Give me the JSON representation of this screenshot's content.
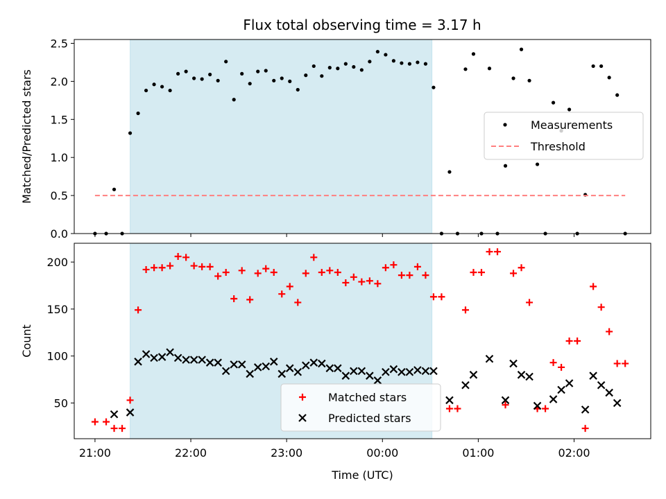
{
  "chart_data": [
    {
      "type": "scatter",
      "title": "Flux total observing time = 3.17 h",
      "xlabel": "",
      "ylabel": "Matched/Predicted stars",
      "xlim": [
        "20:47",
        "02:48"
      ],
      "ylim": [
        0,
        2.55
      ],
      "yticks": [
        0.0,
        0.5,
        1.0,
        1.5,
        2.0,
        2.5
      ],
      "ytick_labels": [
        "0.0",
        "0.5",
        "1.0",
        "1.5",
        "2.0",
        "2.5"
      ],
      "highlight_span": [
        "21:22",
        "00:31"
      ],
      "highlight_color": "#add8e6",
      "legend_position": "center-right",
      "series": [
        {
          "name": "Measurements",
          "kind": "scatter",
          "color": "#000000",
          "points": [
            [
              "21:00",
              0.0
            ],
            [
              "21:07",
              0.0
            ],
            [
              "21:12",
              0.58
            ],
            [
              "21:17",
              0.0
            ],
            [
              "21:22",
              1.32
            ],
            [
              "21:27",
              1.58
            ],
            [
              "21:32",
              1.88
            ],
            [
              "21:37",
              1.96
            ],
            [
              "21:42",
              1.93
            ],
            [
              "21:47",
              1.88
            ],
            [
              "21:52",
              2.1
            ],
            [
              "21:57",
              2.13
            ],
            [
              "22:02",
              2.04
            ],
            [
              "22:07",
              2.03
            ],
            [
              "22:12",
              2.09
            ],
            [
              "22:17",
              2.01
            ],
            [
              "22:22",
              2.26
            ],
            [
              "22:27",
              1.76
            ],
            [
              "22:32",
              2.1
            ],
            [
              "22:37",
              1.97
            ],
            [
              "22:42",
              2.13
            ],
            [
              "22:47",
              2.14
            ],
            [
              "22:52",
              2.01
            ],
            [
              "22:57",
              2.04
            ],
            [
              "23:02",
              2.0
            ],
            [
              "23:07",
              1.89
            ],
            [
              "23:12",
              2.08
            ],
            [
              "23:17",
              2.2
            ],
            [
              "23:22",
              2.07
            ],
            [
              "23:27",
              2.18
            ],
            [
              "23:32",
              2.17
            ],
            [
              "23:37",
              2.23
            ],
            [
              "23:42",
              2.19
            ],
            [
              "23:47",
              2.15
            ],
            [
              "23:52",
              2.26
            ],
            [
              "23:57",
              2.39
            ],
            [
              "00:02",
              2.35
            ],
            [
              "00:07",
              2.27
            ],
            [
              "00:12",
              2.24
            ],
            [
              "00:17",
              2.23
            ],
            [
              "00:22",
              2.25
            ],
            [
              "00:27",
              2.23
            ],
            [
              "00:32",
              1.92
            ],
            [
              "00:37",
              0.0
            ],
            [
              "00:42",
              0.81
            ],
            [
              "00:47",
              0.0
            ],
            [
              "00:52",
              2.16
            ],
            [
              "00:57",
              2.36
            ],
            [
              "01:02",
              0.0
            ],
            [
              "01:07",
              2.17
            ],
            [
              "01:12",
              0.0
            ],
            [
              "01:17",
              0.89
            ],
            [
              "01:22",
              2.04
            ],
            [
              "01:27",
              2.42
            ],
            [
              "01:32",
              2.01
            ],
            [
              "01:37",
              0.91
            ],
            [
              "01:42",
              0.0
            ],
            [
              "01:47",
              1.72
            ],
            [
              "01:52",
              1.35
            ],
            [
              "01:57",
              1.63
            ],
            [
              "02:02",
              0.0
            ],
            [
              "02:07",
              0.51
            ],
            [
              "02:12",
              2.2
            ],
            [
              "02:17",
              2.2
            ],
            [
              "02:22",
              2.05
            ],
            [
              "02:27",
              1.82
            ],
            [
              "02:32",
              0.0
            ]
          ]
        },
        {
          "name": "Threshold",
          "kind": "dashed-line",
          "color": "#ff7f7f",
          "points": [
            [
              "21:00",
              0.5
            ],
            [
              "02:32",
              0.5
            ]
          ]
        }
      ]
    },
    {
      "type": "scatter",
      "title": "",
      "xlabel": "Time (UTC)",
      "ylabel": "Count",
      "xlim": [
        "20:47",
        "02:48"
      ],
      "ylim": [
        12,
        220
      ],
      "yticks": [
        50,
        100,
        150,
        200
      ],
      "ytick_labels": [
        "50",
        "100",
        "150",
        "200"
      ],
      "xticks": [
        "21:00",
        "22:00",
        "23:00",
        "00:00",
        "01:00",
        "02:00"
      ],
      "xtick_labels": [
        "21:00",
        "22:00",
        "23:00",
        "00:00",
        "01:00",
        "02:00"
      ],
      "highlight_span": [
        "21:22",
        "00:31"
      ],
      "highlight_color": "#add8e6",
      "legend_position": "lower-center",
      "series": [
        {
          "name": "Matched stars",
          "kind": "plus",
          "color": "#ff0000",
          "points": [
            [
              "21:00",
              30
            ],
            [
              "21:07",
              30
            ],
            [
              "21:12",
              23
            ],
            [
              "21:17",
              23
            ],
            [
              "21:22",
              53
            ],
            [
              "21:27",
              149
            ],
            [
              "21:32",
              192
            ],
            [
              "21:37",
              194
            ],
            [
              "21:42",
              194
            ],
            [
              "21:47",
              196
            ],
            [
              "21:52",
              206
            ],
            [
              "21:57",
              205
            ],
            [
              "22:02",
              196
            ],
            [
              "22:07",
              195
            ],
            [
              "22:12",
              195
            ],
            [
              "22:17",
              185
            ],
            [
              "22:22",
              189
            ],
            [
              "22:27",
              161
            ],
            [
              "22:32",
              191
            ],
            [
              "22:37",
              160
            ],
            [
              "22:42",
              188
            ],
            [
              "22:47",
              193
            ],
            [
              "22:52",
              189
            ],
            [
              "22:57",
              166
            ],
            [
              "23:02",
              174
            ],
            [
              "23:07",
              157
            ],
            [
              "23:12",
              188
            ],
            [
              "23:17",
              205
            ],
            [
              "23:22",
              189
            ],
            [
              "23:27",
              191
            ],
            [
              "23:32",
              189
            ],
            [
              "23:37",
              178
            ],
            [
              "23:42",
              184
            ],
            [
              "23:47",
              179
            ],
            [
              "23:52",
              180
            ],
            [
              "23:57",
              177
            ],
            [
              "00:02",
              194
            ],
            [
              "00:07",
              197
            ],
            [
              "00:12",
              186
            ],
            [
              "00:17",
              186
            ],
            [
              "00:22",
              195
            ],
            [
              "00:27",
              186
            ],
            [
              "00:32",
              163
            ],
            [
              "00:37",
              163
            ],
            [
              "00:42",
              44
            ],
            [
              "00:47",
              44
            ],
            [
              "00:52",
              149
            ],
            [
              "00:57",
              189
            ],
            [
              "01:02",
              189
            ],
            [
              "01:07",
              211
            ],
            [
              "01:12",
              211
            ],
            [
              "01:17",
              48
            ],
            [
              "01:22",
              188
            ],
            [
              "01:27",
              194
            ],
            [
              "01:32",
              157
            ],
            [
              "01:37",
              44
            ],
            [
              "01:42",
              44
            ],
            [
              "01:47",
              93
            ],
            [
              "01:52",
              88
            ],
            [
              "01:57",
              116
            ],
            [
              "02:02",
              116
            ],
            [
              "02:07",
              23
            ],
            [
              "02:12",
              174
            ],
            [
              "02:17",
              152
            ],
            [
              "02:22",
              126
            ],
            [
              "02:27",
              92
            ],
            [
              "02:32",
              92
            ]
          ]
        },
        {
          "name": "Predicted stars",
          "kind": "x",
          "color": "#000000",
          "points": [
            [
              "21:12",
              38
            ],
            [
              "21:22",
              40
            ],
            [
              "21:27",
              94
            ],
            [
              "21:32",
              102
            ],
            [
              "21:37",
              98
            ],
            [
              "21:42",
              99
            ],
            [
              "21:47",
              104
            ],
            [
              "21:52",
              98
            ],
            [
              "21:57",
              96
            ],
            [
              "22:02",
              96
            ],
            [
              "22:07",
              96
            ],
            [
              "22:12",
              93
            ],
            [
              "22:17",
              93
            ],
            [
              "22:22",
              84
            ],
            [
              "22:27",
              91
            ],
            [
              "22:32",
              91
            ],
            [
              "22:37",
              81
            ],
            [
              "22:42",
              88
            ],
            [
              "22:47",
              89
            ],
            [
              "22:52",
              94
            ],
            [
              "22:57",
              81
            ],
            [
              "23:02",
              87
            ],
            [
              "23:07",
              83
            ],
            [
              "23:12",
              90
            ],
            [
              "23:17",
              93
            ],
            [
              "23:22",
              92
            ],
            [
              "23:27",
              87
            ],
            [
              "23:32",
              87
            ],
            [
              "23:37",
              79
            ],
            [
              "23:42",
              84
            ],
            [
              "23:47",
              84
            ],
            [
              "23:52",
              79
            ],
            [
              "23:57",
              74
            ],
            [
              "00:02",
              83
            ],
            [
              "00:07",
              86
            ],
            [
              "00:12",
              83
            ],
            [
              "00:17",
              83
            ],
            [
              "00:22",
              85
            ],
            [
              "00:27",
              84
            ],
            [
              "00:32",
              84
            ],
            [
              "00:42",
              53
            ],
            [
              "00:52",
              69
            ],
            [
              "00:57",
              80
            ],
            [
              "01:07",
              97
            ],
            [
              "01:17",
              53
            ],
            [
              "01:22",
              92
            ],
            [
              "01:27",
              80
            ],
            [
              "01:32",
              78
            ],
            [
              "01:37",
              47
            ],
            [
              "01:47",
              54
            ],
            [
              "01:52",
              64
            ],
            [
              "01:57",
              71
            ],
            [
              "02:07",
              43
            ],
            [
              "02:12",
              79
            ],
            [
              "02:17",
              69
            ],
            [
              "02:22",
              61
            ],
            [
              "02:27",
              50
            ]
          ]
        }
      ]
    }
  ]
}
